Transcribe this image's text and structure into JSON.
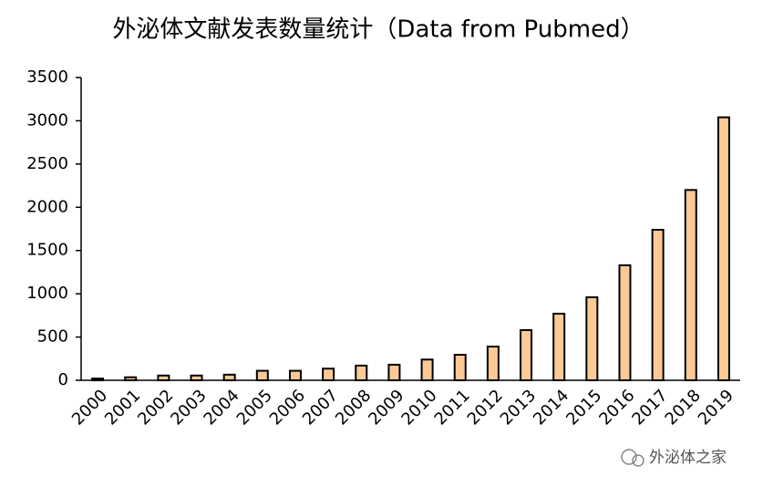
{
  "chart_data": {
    "type": "bar",
    "title": "外泌体文献发表数量统计（Data from Pubmed）",
    "categories": [
      "2000",
      "2001",
      "2002",
      "2003",
      "2004",
      "2005",
      "2006",
      "2007",
      "2008",
      "2009",
      "2010",
      "2011",
      "2012",
      "2013",
      "2014",
      "2015",
      "2016",
      "2017",
      "2018",
      "2019"
    ],
    "values": [
      20,
      35,
      55,
      55,
      65,
      110,
      110,
      135,
      170,
      180,
      240,
      295,
      390,
      580,
      770,
      960,
      1330,
      1740,
      2200,
      3040
    ],
    "color": "#fac995",
    "ylim": [
      0,
      3500
    ],
    "yticks": [
      0,
      500,
      1000,
      1500,
      2000,
      2500,
      3000,
      3500
    ],
    "grid": false
  },
  "watermark": "外泌体之家"
}
